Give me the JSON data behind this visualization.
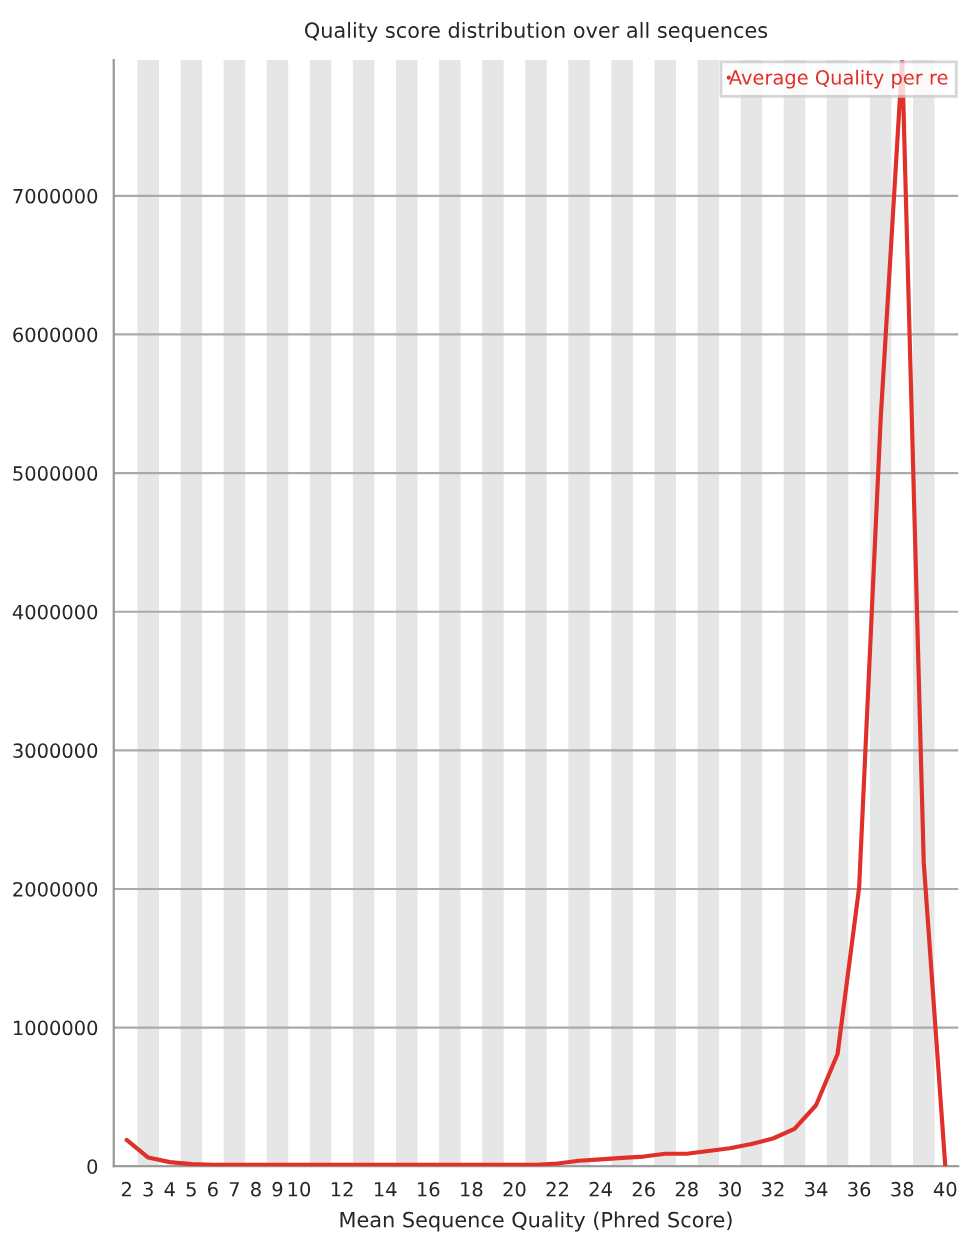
{
  "chart_data": {
    "type": "line",
    "title": "Quality score distribution over all sequences",
    "xlabel": "Mean Sequence Quality (Phred Score)",
    "categories": [
      "2",
      "3",
      "4",
      "5",
      "6",
      "7",
      "8",
      "9",
      "10",
      null,
      "12",
      null,
      "14",
      null,
      "16",
      null,
      "18",
      null,
      "20",
      null,
      "22",
      null,
      "24",
      null,
      "26",
      null,
      "28",
      null,
      "30",
      null,
      "32",
      null,
      "34",
      null,
      "36",
      null,
      "38",
      null,
      "40"
    ],
    "series": [
      {
        "name": "Average Quality per re",
        "color": "#e0302a",
        "values": [
          190000,
          63000,
          30000,
          15000,
          10000,
          10000,
          10000,
          10000,
          10000,
          10000,
          10000,
          10000,
          10000,
          10000,
          10000,
          10000,
          10000,
          10000,
          10000,
          10000,
          20000,
          40000,
          50000,
          60000,
          70000,
          90000,
          90000,
          110000,
          130000,
          160000,
          200000,
          270000,
          440000,
          810000,
          2010000,
          5390000,
          7980000,
          2190000,
          0
        ]
      }
    ],
    "ylim": [
      0,
      7980000
    ],
    "yticks": [
      0,
      1000000,
      2000000,
      3000000,
      4000000,
      5000000,
      6000000,
      7000000
    ],
    "grid": "y",
    "legend": "top right",
    "marker": "none",
    "line_style": "solid"
  }
}
